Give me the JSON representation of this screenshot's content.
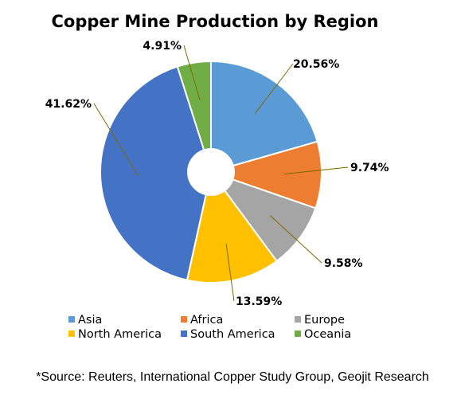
{
  "chart_data": {
    "type": "pie",
    "title": "Copper Mine Production by Region",
    "categories": [
      "Asia",
      "Africa",
      "Europe",
      "North America",
      "South America",
      "Oceania"
    ],
    "values": [
      20.56,
      9.74,
      9.58,
      13.59,
      41.62,
      4.91
    ],
    "value_labels": [
      "20.56%",
      "9.74%",
      "9.58%",
      "13.59%",
      "41.62%",
      "4.91%"
    ],
    "colors": [
      "#5B9BD5",
      "#ED7D31",
      "#A5A5A5",
      "#FFC000",
      "#4472C4",
      "#70AD47"
    ],
    "style": "doughnut",
    "legend_position": "bottom"
  },
  "source_note": "*Source: Reuters, International Copper Study Group, Geojit Research"
}
